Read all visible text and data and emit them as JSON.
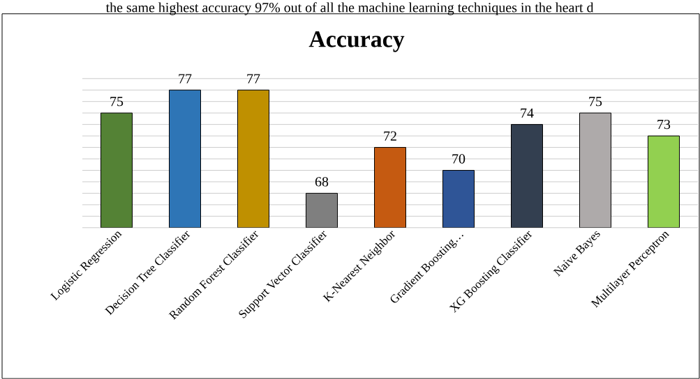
{
  "chart_data": {
    "type": "bar",
    "title": "Accuracy",
    "annotations": [
      "the same highest accuracy 97% out of all the machine learning techniques in the heart d"
    ],
    "categories": [
      "Logistic Regression",
      "Decision Tree Classifier",
      "Random Forest Classifier",
      "Support Vector Classifier",
      "K-Nearest Neighbor",
      "Gradient Boosting…",
      "XG Boosting Classifier",
      "Naive Bayes",
      "Multilayer Perceptron"
    ],
    "values": [
      75,
      77,
      77,
      68,
      72,
      70,
      74,
      75,
      73
    ],
    "colors": [
      "#548235",
      "#2e75b6",
      "#bf9000",
      "#7f7f7f",
      "#c55a11",
      "#2f5597",
      "#333f50",
      "#aeaaaa",
      "#92d050"
    ],
    "ylim": [
      65,
      78
    ],
    "yticks": [
      {
        "value": 65,
        "label": null
      },
      {
        "value": 66,
        "label": null
      },
      {
        "value": 67,
        "label": null
      },
      {
        "value": 68,
        "label": null
      },
      {
        "value": 69,
        "label": null
      },
      {
        "value": 70,
        "label": null
      },
      {
        "value": 71,
        "label": null
      },
      {
        "value": 72,
        "label": null
      },
      {
        "value": 73,
        "label": null
      },
      {
        "value": 74,
        "label": null
      },
      {
        "value": 75,
        "label": null
      },
      {
        "value": 76,
        "label": null
      },
      {
        "value": 77,
        "label": null
      },
      {
        "value": 78,
        "label": null
      }
    ],
    "tick_labels": "x",
    "grid": "y",
    "data_labels": true
  }
}
